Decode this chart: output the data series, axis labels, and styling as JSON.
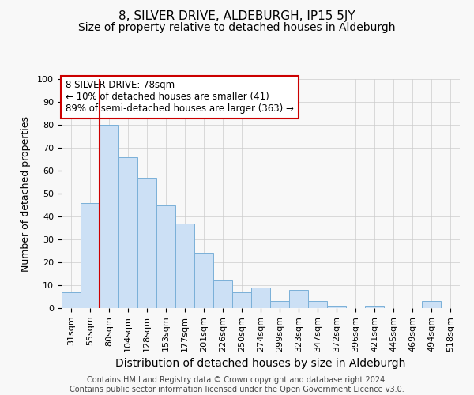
{
  "title": "8, SILVER DRIVE, ALDEBURGH, IP15 5JY",
  "subtitle": "Size of property relative to detached houses in Aldeburgh",
  "xlabel": "Distribution of detached houses by size in Aldeburgh",
  "ylabel": "Number of detached properties",
  "categories": [
    "31sqm",
    "55sqm",
    "80sqm",
    "104sqm",
    "128sqm",
    "153sqm",
    "177sqm",
    "201sqm",
    "226sqm",
    "250sqm",
    "274sqm",
    "299sqm",
    "323sqm",
    "347sqm",
    "372sqm",
    "396sqm",
    "421sqm",
    "445sqm",
    "469sqm",
    "494sqm",
    "518sqm"
  ],
  "values": [
    7,
    46,
    80,
    66,
    57,
    45,
    37,
    24,
    12,
    7,
    9,
    3,
    8,
    3,
    1,
    0,
    1,
    0,
    0,
    3,
    0
  ],
  "bar_color": "#cce0f5",
  "bar_edge_color": "#7ab0d8",
  "vline_index": 2,
  "vline_color": "#cc0000",
  "annotation_text": "8 SILVER DRIVE: 78sqm\n← 10% of detached houses are smaller (41)\n89% of semi-detached houses are larger (363) →",
  "annotation_box_facecolor": "white",
  "annotation_box_edgecolor": "#cc0000",
  "ylim": [
    0,
    100
  ],
  "yticks": [
    0,
    10,
    20,
    30,
    40,
    50,
    60,
    70,
    80,
    90,
    100
  ],
  "footnote": "Contains HM Land Registry data © Crown copyright and database right 2024.\nContains public sector information licensed under the Open Government Licence v3.0.",
  "background_color": "#f8f8f8",
  "grid_color": "#cccccc",
  "title_fontsize": 11,
  "subtitle_fontsize": 10,
  "xlabel_fontsize": 10,
  "ylabel_fontsize": 9,
  "tick_fontsize": 8,
  "annotation_fontsize": 8.5,
  "footnote_fontsize": 7
}
